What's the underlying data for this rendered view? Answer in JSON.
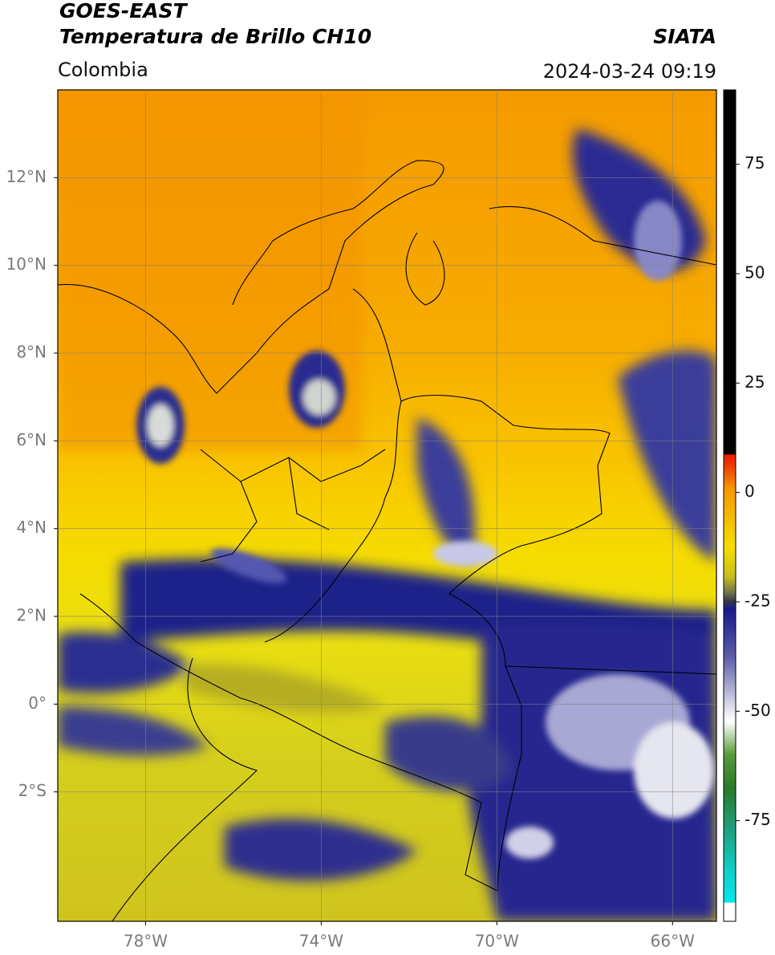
{
  "map": {
    "title": "GOES-EAST",
    "subtitle": "Temperatura de Brillo CH10",
    "source": "SIATA",
    "region": "Colombia",
    "timestamp": "2024-03-24 09:19",
    "xlim": [
      -80,
      -65
    ],
    "ylim": [
      -4.95,
      14
    ],
    "xticks": [
      {
        "value": -78,
        "label": "78°W"
      },
      {
        "value": -74,
        "label": "74°W"
      },
      {
        "value": -70,
        "label": "70°W"
      },
      {
        "value": -66,
        "label": "66°W"
      }
    ],
    "yticks": [
      {
        "value": 12,
        "label": "12°N"
      },
      {
        "value": 10,
        "label": "10°N"
      },
      {
        "value": 8,
        "label": "8°N"
      },
      {
        "value": 6,
        "label": "6°N"
      },
      {
        "value": 4,
        "label": "4°N"
      },
      {
        "value": 2,
        "label": "2°N"
      },
      {
        "value": 0,
        "label": "0°"
      },
      {
        "value": -2,
        "label": "2°S"
      }
    ],
    "grid": true,
    "colorbar": {
      "clim": [
        -98,
        92
      ],
      "ticks": [
        75,
        50,
        25,
        0,
        -25,
        -50,
        -75
      ]
    }
  }
}
